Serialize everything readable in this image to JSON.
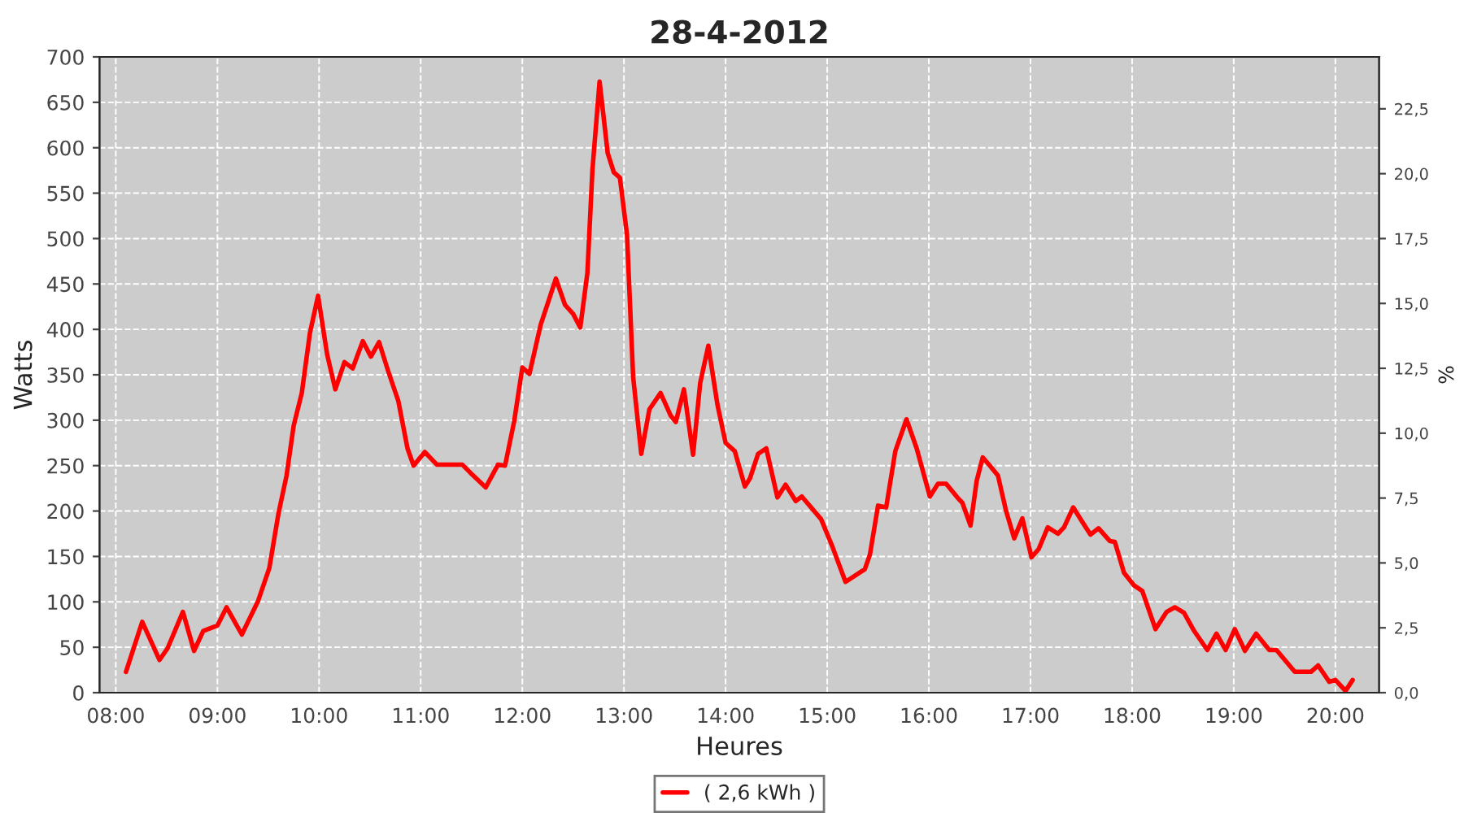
{
  "chart_data": {
    "type": "line",
    "title": "28-4-2012",
    "xlabel": "Heures",
    "ylabel": "Watts",
    "y2label": "%",
    "x": [
      8.1,
      8.26,
      8.43,
      8.51,
      8.66,
      8.77,
      8.86,
      9.0,
      9.09,
      9.24,
      9.4,
      9.51,
      9.6,
      9.68,
      9.75,
      9.83,
      9.91,
      9.99,
      10.08,
      10.16,
      10.25,
      10.33,
      10.43,
      10.51,
      10.59,
      10.68,
      10.78,
      10.87,
      10.93,
      11.04,
      11.16,
      11.41,
      11.49,
      11.64,
      11.76,
      11.83,
      11.92,
      12.0,
      12.07,
      12.18,
      12.26,
      12.33,
      12.42,
      12.5,
      12.57,
      12.64,
      12.69,
      12.76,
      12.84,
      12.9,
      12.96,
      13.03,
      13.09,
      13.17,
      13.25,
      13.36,
      13.46,
      13.51,
      13.59,
      13.68,
      13.75,
      13.83,
      13.92,
      14.0,
      14.09,
      14.19,
      14.24,
      14.32,
      14.4,
      14.51,
      14.59,
      14.69,
      14.75,
      14.94,
      15.05,
      15.18,
      15.37,
      15.42,
      15.5,
      15.58,
      15.67,
      15.78,
      15.88,
      16.01,
      16.09,
      16.17,
      16.28,
      16.33,
      16.41,
      16.47,
      16.53,
      16.6,
      16.68,
      16.76,
      16.84,
      16.92,
      17.01,
      17.08,
      17.17,
      17.27,
      17.33,
      17.42,
      17.51,
      17.59,
      17.67,
      17.78,
      17.83,
      17.92,
      18.02,
      18.1,
      18.23,
      18.34,
      18.42,
      18.51,
      18.61,
      18.74,
      18.83,
      18.92,
      19.01,
      19.11,
      19.22,
      19.35,
      19.42,
      19.6,
      19.76,
      19.83,
      19.94,
      20.0,
      20.1,
      20.17
    ],
    "series": [
      {
        "name": "( 2,6 kWh )",
        "color": "#ff0000",
        "values": [
          23,
          78,
          36,
          49,
          89,
          46,
          68,
          74,
          94,
          64,
          101,
          137,
          197,
          239,
          294,
          330,
          396,
          437,
          372,
          334,
          364,
          357,
          387,
          370,
          386,
          354,
          321,
          269,
          250,
          265,
          251,
          251,
          242,
          226,
          251,
          250,
          299,
          358,
          351,
          405,
          432,
          456,
          427,
          417,
          402,
          462,
          576,
          673,
          594,
          573,
          567,
          504,
          348,
          263,
          312,
          330,
          305,
          298,
          334,
          262,
          341,
          382,
          317,
          275,
          266,
          227,
          236,
          263,
          269,
          215,
          229,
          211,
          216,
          191,
          161,
          122,
          136,
          152,
          206,
          204,
          266,
          301,
          269,
          216,
          230,
          230,
          215,
          209,
          184,
          233,
          259,
          250,
          239,
          200,
          170,
          192,
          149,
          158,
          182,
          175,
          182,
          204,
          188,
          174,
          181,
          167,
          166,
          132,
          118,
          112,
          70,
          89,
          94,
          88,
          68,
          47,
          65,
          47,
          70,
          46,
          65,
          47,
          47,
          23,
          23,
          30,
          12,
          14,
          2,
          14
        ]
      }
    ],
    "xlim": [
      7.84,
      20.43
    ],
    "xticks": [
      {
        "value": 8,
        "label": "08:00"
      },
      {
        "value": 9,
        "label": "09:00"
      },
      {
        "value": 10,
        "label": "10:00"
      },
      {
        "value": 11,
        "label": "11:00"
      },
      {
        "value": 12,
        "label": "12:00"
      },
      {
        "value": 13,
        "label": "13:00"
      },
      {
        "value": 14,
        "label": "14:00"
      },
      {
        "value": 15,
        "label": "15:00"
      },
      {
        "value": 16,
        "label": "16:00"
      },
      {
        "value": 17,
        "label": "17:00"
      },
      {
        "value": 18,
        "label": "18:00"
      },
      {
        "value": 19,
        "label": "19:00"
      },
      {
        "value": 20,
        "label": "20:00"
      }
    ],
    "ylim": [
      0,
      700
    ],
    "yticks": [
      0,
      50,
      100,
      150,
      200,
      250,
      300,
      350,
      400,
      450,
      500,
      550,
      600,
      650,
      700
    ],
    "y2lim": [
      0,
      24.5
    ],
    "y2ticks": [
      {
        "value": 0,
        "label": "0,0"
      },
      {
        "value": 2.5,
        "label": "2,5"
      },
      {
        "value": 5,
        "label": "5,0"
      },
      {
        "value": 7.5,
        "label": "7,5"
      },
      {
        "value": 10,
        "label": "10,0"
      },
      {
        "value": 12.5,
        "label": "12,5"
      },
      {
        "value": 15,
        "label": "15,0"
      },
      {
        "value": 17.5,
        "label": "17,5"
      },
      {
        "value": 20,
        "label": "20,0"
      },
      {
        "value": 22.5,
        "label": "22,5"
      }
    ],
    "grid": true,
    "legend": "bottom",
    "marker": "none",
    "line_style": "solid"
  }
}
